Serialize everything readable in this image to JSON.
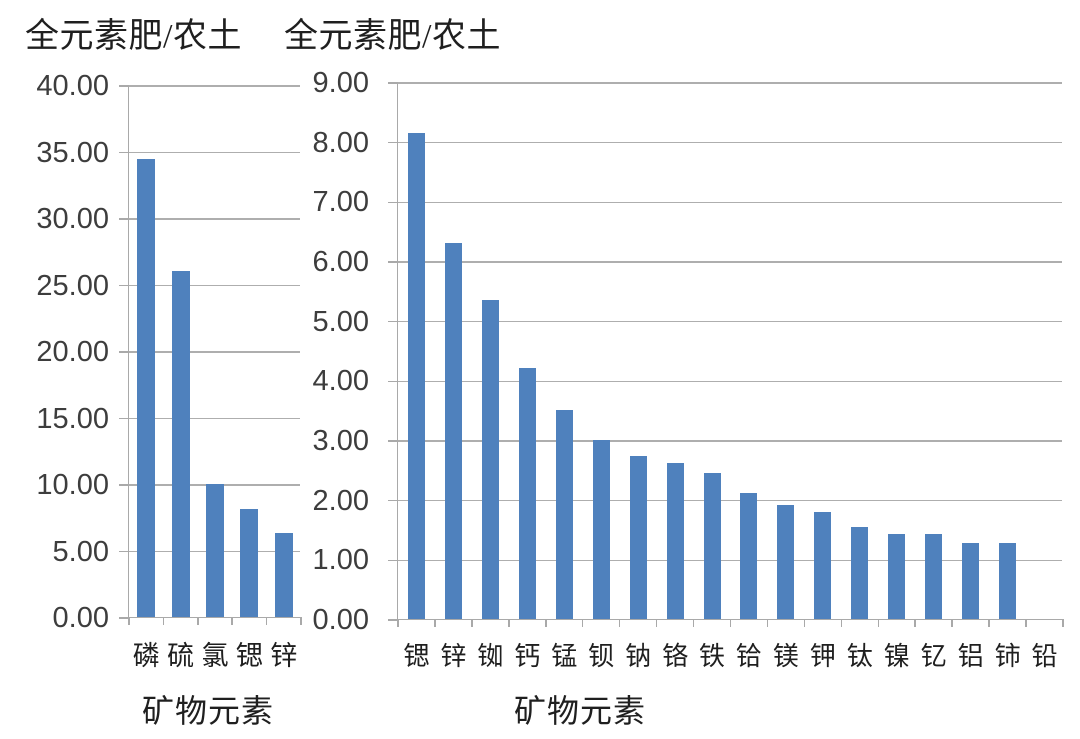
{
  "figure": {
    "background": "#ffffff",
    "bar_color": "#4f81bd",
    "grid_color": "#aeaeae",
    "axis_color": "#a9a9a9",
    "number_color": "#3d3d3d",
    "text_color": "#1f1f1f"
  },
  "chart_data": [
    {
      "type": "bar",
      "title": "全元素肥/农土",
      "xlabel": "矿物元素",
      "ylabel": "",
      "categories": [
        "磷",
        "硫",
        "氯",
        "锶",
        "锌"
      ],
      "values": [
        34.4,
        26.0,
        10.0,
        8.15,
        6.3
      ],
      "ylim": [
        0,
        40
      ],
      "ytick_step": 5,
      "ytick_labels": [
        "0.00",
        "5.00",
        "10.00",
        "15.00",
        "20.00",
        "25.00",
        "30.00",
        "35.00",
        "40.00"
      ],
      "grid": true,
      "legend": "none"
    },
    {
      "type": "bar",
      "title": "全元素肥/农土",
      "xlabel": "矿物元素",
      "ylabel": "",
      "categories": [
        "锶",
        "锌",
        "铷",
        "钙",
        "锰",
        "钡",
        "钠",
        "铬",
        "铁",
        "铪",
        "镁",
        "钾",
        "钛",
        "镍",
        "钇",
        "铝",
        "铈",
        "铅"
      ],
      "values": [
        8.15,
        6.3,
        5.35,
        4.2,
        3.5,
        3.0,
        2.73,
        2.62,
        2.45,
        2.12,
        1.91,
        1.8,
        1.55,
        1.42,
        1.42,
        1.28,
        1.28,
        0
      ],
      "ylim": [
        0,
        9
      ],
      "ytick_step": 1,
      "ytick_labels": [
        "0.00",
        "1.00",
        "2.00",
        "3.00",
        "4.00",
        "5.00",
        "6.00",
        "7.00",
        "8.00",
        "9.00"
      ],
      "grid": true,
      "legend": "none"
    }
  ]
}
